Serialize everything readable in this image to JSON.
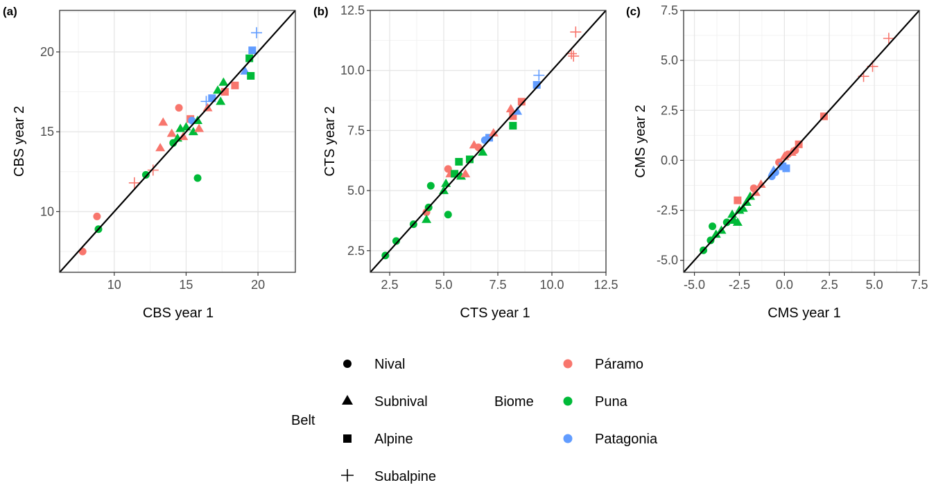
{
  "colors": {
    "Páramo": "#f8766d",
    "Puna": "#00ba38",
    "Patagonia": "#619cff",
    "line": "#000000",
    "grid_major": "#e6e6e6",
    "grid_minor": "#f2f2f2"
  },
  "legend": {
    "belt_title": "Belt",
    "biome_title": "Biome",
    "belts": [
      {
        "key": "nival",
        "label": "Nival",
        "shape": "circle"
      },
      {
        "key": "subnival",
        "label": "Subnival",
        "shape": "triangle"
      },
      {
        "key": "alpine",
        "label": "Alpine",
        "shape": "square"
      },
      {
        "key": "subalpine",
        "label": "Subalpine",
        "shape": "plus"
      }
    ],
    "biomes": [
      {
        "key": "Páramo",
        "label": "Páramo"
      },
      {
        "key": "Puna",
        "label": "Puna"
      },
      {
        "key": "Patagonia",
        "label": "Patagonia"
      }
    ]
  },
  "chart_data": [
    {
      "type": "scatter",
      "panel_label": "(a)",
      "xlabel": "CBS year 1",
      "ylabel": "CBS year 2",
      "xlim": [
        6.2,
        22.6
      ],
      "ylim": [
        6.2,
        22.6
      ],
      "xticks": [
        10,
        15,
        20
      ],
      "yticks": [
        10,
        15,
        20
      ],
      "tick_labels_x": [
        "10",
        "15",
        "20"
      ],
      "tick_labels_y": [
        "10",
        "15",
        "20"
      ],
      "reference_line": "y = x",
      "grid": true,
      "points": [
        {
          "x": 7.8,
          "y": 7.5,
          "shape": "circle",
          "biome": "Páramo"
        },
        {
          "x": 8.8,
          "y": 9.7,
          "shape": "circle",
          "biome": "Páramo"
        },
        {
          "x": 8.9,
          "y": 8.9,
          "shape": "circle",
          "biome": "Puna"
        },
        {
          "x": 11.4,
          "y": 11.8,
          "shape": "plus",
          "biome": "Páramo"
        },
        {
          "x": 12.2,
          "y": 12.3,
          "shape": "circle",
          "biome": "Puna"
        },
        {
          "x": 12.7,
          "y": 12.6,
          "shape": "plus",
          "biome": "Páramo"
        },
        {
          "x": 13.2,
          "y": 14.0,
          "shape": "triangle",
          "biome": "Páramo"
        },
        {
          "x": 13.4,
          "y": 15.6,
          "shape": "triangle",
          "biome": "Páramo"
        },
        {
          "x": 14.0,
          "y": 14.9,
          "shape": "triangle",
          "biome": "Páramo"
        },
        {
          "x": 14.1,
          "y": 14.3,
          "shape": "circle",
          "biome": "Puna"
        },
        {
          "x": 14.4,
          "y": 14.6,
          "shape": "triangle",
          "biome": "Puna"
        },
        {
          "x": 14.5,
          "y": 16.5,
          "shape": "circle",
          "biome": "Páramo"
        },
        {
          "x": 14.6,
          "y": 15.2,
          "shape": "triangle",
          "biome": "Puna"
        },
        {
          "x": 14.8,
          "y": 14.7,
          "shape": "triangle",
          "biome": "Páramo"
        },
        {
          "x": 15.0,
          "y": 15.3,
          "shape": "triangle",
          "biome": "Puna"
        },
        {
          "x": 15.3,
          "y": 15.8,
          "shape": "square",
          "biome": "Páramo"
        },
        {
          "x": 15.4,
          "y": 15.7,
          "shape": "circle",
          "biome": "Patagonia"
        },
        {
          "x": 15.5,
          "y": 15.0,
          "shape": "triangle",
          "biome": "Puna"
        },
        {
          "x": 15.8,
          "y": 15.7,
          "shape": "triangle",
          "biome": "Puna"
        },
        {
          "x": 15.9,
          "y": 15.2,
          "shape": "triangle",
          "biome": "Páramo"
        },
        {
          "x": 15.8,
          "y": 12.1,
          "shape": "circle",
          "biome": "Puna"
        },
        {
          "x": 16.4,
          "y": 16.9,
          "shape": "plus",
          "biome": "Patagonia"
        },
        {
          "x": 16.5,
          "y": 16.5,
          "shape": "triangle",
          "biome": "Páramo"
        },
        {
          "x": 16.8,
          "y": 17.1,
          "shape": "square",
          "biome": "Patagonia"
        },
        {
          "x": 17.2,
          "y": 17.6,
          "shape": "triangle",
          "biome": "Puna"
        },
        {
          "x": 17.4,
          "y": 16.9,
          "shape": "triangle",
          "biome": "Puna"
        },
        {
          "x": 17.6,
          "y": 18.1,
          "shape": "triangle",
          "biome": "Puna"
        },
        {
          "x": 17.7,
          "y": 17.5,
          "shape": "square",
          "biome": "Páramo"
        },
        {
          "x": 18.4,
          "y": 17.9,
          "shape": "square",
          "biome": "Páramo"
        },
        {
          "x": 19.1,
          "y": 18.8,
          "shape": "triangle",
          "biome": "Patagonia"
        },
        {
          "x": 19.4,
          "y": 19.6,
          "shape": "square",
          "biome": "Puna"
        },
        {
          "x": 19.5,
          "y": 18.5,
          "shape": "square",
          "biome": "Puna"
        },
        {
          "x": 19.6,
          "y": 20.1,
          "shape": "square",
          "biome": "Patagonia"
        },
        {
          "x": 19.9,
          "y": 21.2,
          "shape": "plus",
          "biome": "Patagonia"
        }
      ]
    },
    {
      "type": "scatter",
      "panel_label": "(b)",
      "xlabel": "CTS year 1",
      "ylabel": "CTS year 2",
      "xlim": [
        1.6,
        12.5
      ],
      "ylim": [
        1.6,
        12.5
      ],
      "xticks": [
        2.5,
        5.0,
        7.5,
        10.0,
        12.5
      ],
      "yticks": [
        2.5,
        5.0,
        7.5,
        10.0,
        12.5
      ],
      "tick_labels_x": [
        "2.5",
        "5.0",
        "7.5",
        "10.0",
        "12.5"
      ],
      "tick_labels_y": [
        "2.5",
        "5.0",
        "7.5",
        "10.0",
        "12.5"
      ],
      "reference_line": "y = x",
      "grid": true,
      "points": [
        {
          "x": 2.3,
          "y": 2.3,
          "shape": "circle",
          "biome": "Puna"
        },
        {
          "x": 2.8,
          "y": 2.9,
          "shape": "circle",
          "biome": "Puna"
        },
        {
          "x": 3.6,
          "y": 3.6,
          "shape": "circle",
          "biome": "Puna"
        },
        {
          "x": 4.2,
          "y": 4.1,
          "shape": "circle",
          "biome": "Páramo"
        },
        {
          "x": 4.2,
          "y": 3.8,
          "shape": "triangle",
          "biome": "Puna"
        },
        {
          "x": 4.3,
          "y": 4.3,
          "shape": "circle",
          "biome": "Puna"
        },
        {
          "x": 4.4,
          "y": 5.2,
          "shape": "circle",
          "biome": "Puna"
        },
        {
          "x": 5.0,
          "y": 5.0,
          "shape": "triangle",
          "biome": "Puna"
        },
        {
          "x": 5.1,
          "y": 5.3,
          "shape": "triangle",
          "biome": "Puna"
        },
        {
          "x": 5.2,
          "y": 5.9,
          "shape": "circle",
          "biome": "Páramo"
        },
        {
          "x": 5.3,
          "y": 5.7,
          "shape": "triangle",
          "biome": "Páramo"
        },
        {
          "x": 5.2,
          "y": 4.0,
          "shape": "circle",
          "biome": "Puna"
        },
        {
          "x": 5.5,
          "y": 5.7,
          "shape": "square",
          "biome": "Puna"
        },
        {
          "x": 5.7,
          "y": 6.2,
          "shape": "square",
          "biome": "Puna"
        },
        {
          "x": 5.8,
          "y": 5.6,
          "shape": "triangle",
          "biome": "Puna"
        },
        {
          "x": 6.0,
          "y": 5.7,
          "shape": "triangle",
          "biome": "Páramo"
        },
        {
          "x": 6.2,
          "y": 6.3,
          "shape": "square",
          "biome": "Puna"
        },
        {
          "x": 6.4,
          "y": 6.9,
          "shape": "triangle",
          "biome": "Páramo"
        },
        {
          "x": 6.6,
          "y": 6.8,
          "shape": "circle",
          "biome": "Páramo"
        },
        {
          "x": 6.8,
          "y": 6.6,
          "shape": "triangle",
          "biome": "Puna"
        },
        {
          "x": 6.9,
          "y": 7.1,
          "shape": "circle",
          "biome": "Patagonia"
        },
        {
          "x": 7.1,
          "y": 7.2,
          "shape": "square",
          "biome": "Patagonia"
        },
        {
          "x": 7.3,
          "y": 7.4,
          "shape": "triangle",
          "biome": "Páramo"
        },
        {
          "x": 8.1,
          "y": 8.4,
          "shape": "triangle",
          "biome": "Páramo"
        },
        {
          "x": 8.2,
          "y": 8.1,
          "shape": "square",
          "biome": "Páramo"
        },
        {
          "x": 8.2,
          "y": 7.7,
          "shape": "square",
          "biome": "Puna"
        },
        {
          "x": 8.4,
          "y": 8.3,
          "shape": "triangle",
          "biome": "Patagonia"
        },
        {
          "x": 8.6,
          "y": 8.7,
          "shape": "square",
          "biome": "Páramo"
        },
        {
          "x": 9.3,
          "y": 9.4,
          "shape": "square",
          "biome": "Patagonia"
        },
        {
          "x": 9.4,
          "y": 9.8,
          "shape": "plus",
          "biome": "Patagonia"
        },
        {
          "x": 10.9,
          "y": 10.7,
          "shape": "plus",
          "biome": "Páramo"
        },
        {
          "x": 11.0,
          "y": 10.6,
          "shape": "plus",
          "biome": "Páramo"
        },
        {
          "x": 11.1,
          "y": 11.6,
          "shape": "plus",
          "biome": "Páramo"
        }
      ]
    },
    {
      "type": "scatter",
      "panel_label": "(c)",
      "xlabel": "CMS year 1",
      "ylabel": "CMS year 2",
      "xlim": [
        -5.6,
        7.5
      ],
      "ylim": [
        -5.6,
        7.5
      ],
      "xticks": [
        -5.0,
        -2.5,
        0.0,
        2.5,
        5.0,
        7.5
      ],
      "yticks": [
        -5.0,
        -2.5,
        0.0,
        2.5,
        5.0,
        7.5
      ],
      "tick_labels_x": [
        "-5.0",
        "-2.5",
        "0.0",
        "2.5",
        "5.0",
        "7.5"
      ],
      "tick_labels_y": [
        "-5.0",
        "-2.5",
        "0.0",
        "2.5",
        "5.0",
        "7.5"
      ],
      "reference_line": "y = x",
      "grid": true,
      "points": [
        {
          "x": -4.5,
          "y": -4.5,
          "shape": "circle",
          "biome": "Puna"
        },
        {
          "x": -4.1,
          "y": -4.0,
          "shape": "circle",
          "biome": "Puna"
        },
        {
          "x": -4.0,
          "y": -3.3,
          "shape": "circle",
          "biome": "Puna"
        },
        {
          "x": -3.8,
          "y": -3.7,
          "shape": "triangle",
          "biome": "Puna"
        },
        {
          "x": -3.5,
          "y": -3.5,
          "shape": "triangle",
          "biome": "Puna"
        },
        {
          "x": -3.2,
          "y": -3.1,
          "shape": "circle",
          "biome": "Puna"
        },
        {
          "x": -2.9,
          "y": -2.7,
          "shape": "triangle",
          "biome": "Puna"
        },
        {
          "x": -2.8,
          "y": -3.0,
          "shape": "triangle",
          "biome": "Puna"
        },
        {
          "x": -2.6,
          "y": -3.1,
          "shape": "triangle",
          "biome": "Puna"
        },
        {
          "x": -2.6,
          "y": -2.0,
          "shape": "square",
          "biome": "Páramo"
        },
        {
          "x": -2.5,
          "y": -2.5,
          "shape": "triangle",
          "biome": "Puna"
        },
        {
          "x": -2.3,
          "y": -2.4,
          "shape": "triangle",
          "biome": "Puna"
        },
        {
          "x": -2.1,
          "y": -2.1,
          "shape": "triangle",
          "biome": "Puna"
        },
        {
          "x": -1.9,
          "y": -1.8,
          "shape": "triangle",
          "biome": "Puna"
        },
        {
          "x": -1.7,
          "y": -1.4,
          "shape": "circle",
          "biome": "Páramo"
        },
        {
          "x": -1.6,
          "y": -1.6,
          "shape": "triangle",
          "biome": "Páramo"
        },
        {
          "x": -1.3,
          "y": -1.2,
          "shape": "triangle",
          "biome": "Páramo"
        },
        {
          "x": -0.7,
          "y": -0.8,
          "shape": "circle",
          "biome": "Patagonia"
        },
        {
          "x": -0.6,
          "y": -0.5,
          "shape": "triangle",
          "biome": "Patagonia"
        },
        {
          "x": -0.5,
          "y": -0.6,
          "shape": "circle",
          "biome": "Patagonia"
        },
        {
          "x": -0.3,
          "y": -0.1,
          "shape": "circle",
          "biome": "Páramo"
        },
        {
          "x": -0.1,
          "y": -0.3,
          "shape": "square",
          "biome": "Patagonia"
        },
        {
          "x": 0.0,
          "y": 0.2,
          "shape": "triangle",
          "biome": "Páramo"
        },
        {
          "x": 0.1,
          "y": -0.4,
          "shape": "square",
          "biome": "Patagonia"
        },
        {
          "x": 0.2,
          "y": 0.3,
          "shape": "circle",
          "biome": "Páramo"
        },
        {
          "x": 0.4,
          "y": 0.4,
          "shape": "triangle",
          "biome": "Páramo"
        },
        {
          "x": 0.6,
          "y": 0.5,
          "shape": "circle",
          "biome": "Páramo"
        },
        {
          "x": 0.8,
          "y": 0.8,
          "shape": "square",
          "biome": "Páramo"
        },
        {
          "x": 2.2,
          "y": 2.2,
          "shape": "square",
          "biome": "Páramo"
        },
        {
          "x": 4.4,
          "y": 4.2,
          "shape": "plus",
          "biome": "Páramo"
        },
        {
          "x": 4.9,
          "y": 4.7,
          "shape": "plus",
          "biome": "Páramo"
        },
        {
          "x": 5.8,
          "y": 6.1,
          "shape": "plus",
          "biome": "Páramo"
        }
      ]
    }
  ]
}
